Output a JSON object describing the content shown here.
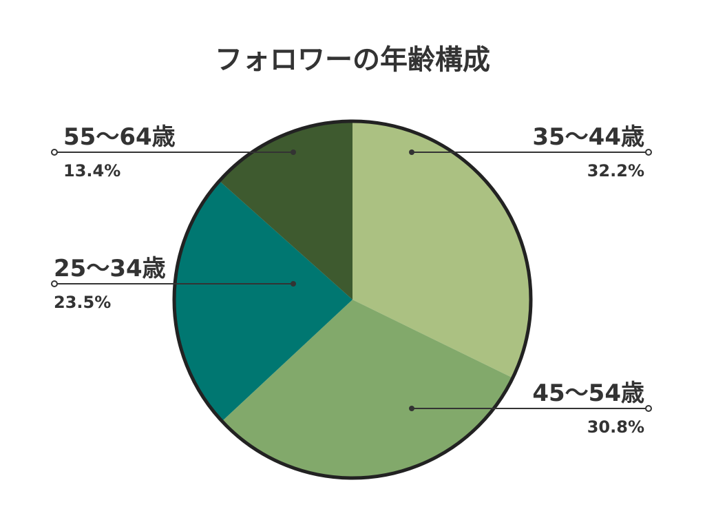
{
  "chart_data": {
    "type": "pie",
    "title": "フォロワーの年齢構成",
    "slices": [
      {
        "label": "35〜44歳",
        "value": 32.2,
        "display": "32.2%",
        "color": "#abc182"
      },
      {
        "label": "45〜54歳",
        "value": 30.8,
        "display": "30.8%",
        "color": "#82a96b"
      },
      {
        "label": "25〜34歳",
        "value": 23.5,
        "display": "23.5%",
        "color": "#007771"
      },
      {
        "label": "55〜64歳",
        "value": 13.4,
        "display": "13.4%",
        "color": "#3e5a2f"
      }
    ],
    "start": "top",
    "direction": "clockwise",
    "outline_color": "#222222"
  }
}
